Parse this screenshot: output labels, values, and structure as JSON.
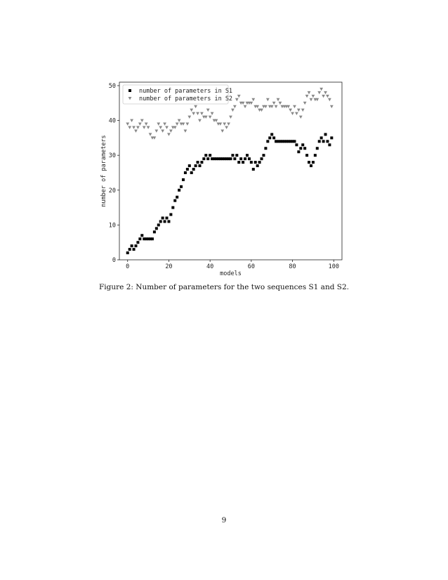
{
  "figure": {
    "caption": "Figure 2: Number of parameters for the two sequences S1 and S2.",
    "page_number": "9"
  },
  "chart_data": {
    "type": "scatter",
    "title": "",
    "xlabel": "models",
    "ylabel": "number of parameters",
    "xlim": [
      -4,
      104
    ],
    "ylim": [
      0,
      51
    ],
    "xticks": [
      0,
      20,
      40,
      60,
      80,
      100
    ],
    "yticks": [
      0,
      10,
      20,
      30,
      40,
      50
    ],
    "grid": false,
    "legend_position": "upper-left",
    "x": [
      0,
      1,
      2,
      3,
      4,
      5,
      6,
      7,
      8,
      9,
      10,
      11,
      12,
      13,
      14,
      15,
      16,
      17,
      18,
      19,
      20,
      21,
      22,
      23,
      24,
      25,
      26,
      27,
      28,
      29,
      30,
      31,
      32,
      33,
      34,
      35,
      36,
      37,
      38,
      39,
      40,
      41,
      42,
      43,
      44,
      45,
      46,
      47,
      48,
      49,
      50,
      51,
      52,
      53,
      54,
      55,
      56,
      57,
      58,
      59,
      60,
      61,
      62,
      63,
      64,
      65,
      66,
      67,
      68,
      69,
      70,
      71,
      72,
      73,
      74,
      75,
      76,
      77,
      78,
      79,
      80,
      81,
      82,
      83,
      84,
      85,
      86,
      87,
      88,
      89,
      90,
      91,
      92,
      93,
      94,
      95,
      96,
      97,
      98,
      99
    ],
    "series": [
      {
        "name": "number of parameters in S1",
        "marker": "square",
        "color": "#000000",
        "values": [
          2,
          3,
          4,
          3,
          4,
          5,
          6,
          7,
          6,
          6,
          6,
          6,
          6,
          8,
          9,
          10,
          11,
          12,
          11,
          12,
          11,
          13,
          15,
          17,
          18,
          20,
          21,
          23,
          25,
          26,
          27,
          25,
          26,
          27,
          28,
          27,
          28,
          29,
          30,
          29,
          30,
          29,
          29,
          29,
          29,
          29,
          29,
          29,
          29,
          29,
          29,
          30,
          29,
          30,
          28,
          29,
          28,
          29,
          30,
          29,
          28,
          26,
          28,
          27,
          28,
          29,
          30,
          32,
          34,
          35,
          36,
          35,
          34,
          34,
          34,
          34,
          34,
          34,
          34,
          34,
          34,
          34,
          33,
          31,
          32,
          33,
          32,
          30,
          28,
          27,
          28,
          30,
          32,
          34,
          35,
          34,
          36,
          34,
          33,
          35
        ]
      },
      {
        "name": "number of parameters in S2",
        "marker": "triangle-down",
        "color": "#888888",
        "values": [
          39,
          38,
          40,
          38,
          37,
          38,
          39,
          40,
          38,
          39,
          38,
          36,
          35,
          35,
          37,
          39,
          38,
          37,
          39,
          38,
          36,
          37,
          38,
          38,
          39,
          40,
          39,
          39,
          37,
          39,
          41,
          43,
          42,
          44,
          42,
          40,
          42,
          41,
          41,
          43,
          41,
          42,
          40,
          40,
          39,
          39,
          37,
          39,
          38,
          39,
          41,
          43,
          44,
          46,
          47,
          45,
          45,
          44,
          45,
          45,
          45,
          46,
          44,
          44,
          43,
          43,
          44,
          44,
          46,
          44,
          44,
          45,
          44,
          46,
          45,
          44,
          44,
          44,
          44,
          43,
          42,
          44,
          42,
          43,
          41,
          43,
          45,
          47,
          48,
          46,
          47,
          46,
          46,
          48,
          49,
          47,
          48,
          47,
          46,
          44
        ]
      }
    ]
  }
}
